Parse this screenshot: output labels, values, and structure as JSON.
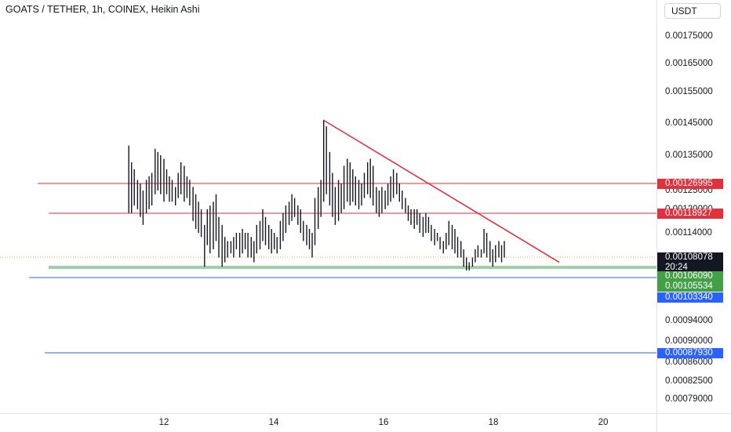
{
  "header": {
    "title": "GOATS / TETHER, 1h, COINEX, Heikin Ashi"
  },
  "price_axis": {
    "currency": "USDT",
    "ticks": [
      "0.00175000",
      "0.00165000",
      "0.00155000",
      "0.00145000",
      "0.00135000",
      "0.00125000",
      "0.00120000",
      "0.00114000",
      "0.00098000",
      "0.00094000",
      "0.00090000",
      "0.00086000",
      "0.00082500",
      "0.00079000"
    ]
  },
  "time_axis": {
    "labels": [
      "12",
      "14",
      "16",
      "18",
      "20"
    ]
  },
  "badges": [
    {
      "name": "badge-resistance-upper",
      "text": "0.00126995",
      "color": "#e0323d"
    },
    {
      "name": "badge-resistance-lower",
      "text": "0.00118927",
      "color": "#e0323d"
    },
    {
      "name": "badge-last-price",
      "text": "0.00108078",
      "color": "#131722"
    },
    {
      "name": "badge-countdown",
      "text": "20:24",
      "color": "#131722"
    },
    {
      "name": "badge-support-upper",
      "text": "0.00106090",
      "color": "#43a047"
    },
    {
      "name": "badge-support-lower",
      "text": "0.00105534",
      "color": "#43a047"
    },
    {
      "name": "badge-blue-upper",
      "text": "0.00103340",
      "color": "#2962ff"
    },
    {
      "name": "badge-blue-lower",
      "text": "0.00087930",
      "color": "#2962ff"
    }
  ],
  "chart_data": {
    "type": "bar",
    "symbol": "GOATS / TETHER",
    "interval": "1h",
    "exchange": "COINEX",
    "style": "Heikin Ashi",
    "currency": "USDT",
    "ylim": [
      0.00077,
      0.0018
    ],
    "x_ticks": [
      "12",
      "14",
      "16",
      "18",
      "20"
    ],
    "horizontal_lines": [
      {
        "name": "resistance-upper",
        "price": 0.00126995,
        "color": "#e0323d"
      },
      {
        "name": "resistance-lower",
        "price": 0.00118927,
        "color": "#e0323d"
      },
      {
        "name": "last-price",
        "price": 0.00108078,
        "color": "#f5a623",
        "style": "dotted"
      },
      {
        "name": "support-upper",
        "price": 0.0010609,
        "color": "#43a047"
      },
      {
        "name": "support-lower",
        "price": 0.00105534,
        "color": "#43a047"
      },
      {
        "name": "blue-upper",
        "price": 0.0010334,
        "color": "#2962ff"
      },
      {
        "name": "blue-lower",
        "price": 0.0008793,
        "color": "#2962ff"
      }
    ],
    "trendline": {
      "start": [
        14.9,
        0.00146
      ],
      "end": [
        19.2,
        0.00107
      ],
      "color": "#e0323d"
    },
    "candles_hl": [
      [
        11.36,
        0.00119,
        0.00138
      ],
      [
        11.41,
        0.00119,
        0.00133
      ],
      [
        11.46,
        0.00121,
        0.00131
      ],
      [
        11.52,
        0.0012,
        0.00128
      ],
      [
        11.57,
        0.00118,
        0.00127
      ],
      [
        11.62,
        0.00116,
        0.00125
      ],
      [
        11.68,
        0.00119,
        0.00128
      ],
      [
        11.73,
        0.0012,
        0.00129
      ],
      [
        11.78,
        0.00121,
        0.0013
      ],
      [
        11.84,
        0.00124,
        0.00137
      ],
      [
        11.89,
        0.00125,
        0.00136
      ],
      [
        11.94,
        0.00124,
        0.00135
      ],
      [
        12.0,
        0.00122,
        0.00134
      ],
      [
        12.05,
        0.00124,
        0.00131
      ],
      [
        12.1,
        0.00122,
        0.00129
      ],
      [
        12.15,
        0.00122,
        0.00128
      ],
      [
        12.21,
        0.00121,
        0.00126
      ],
      [
        12.26,
        0.00123,
        0.0013
      ],
      [
        12.31,
        0.00124,
        0.00133
      ],
      [
        12.37,
        0.00122,
        0.00132
      ],
      [
        12.42,
        0.00123,
        0.00129
      ],
      [
        12.47,
        0.00121,
        0.00128
      ],
      [
        12.53,
        0.00117,
        0.00126
      ],
      [
        12.58,
        0.00115,
        0.00124
      ],
      [
        12.63,
        0.00114,
        0.00122
      ],
      [
        12.68,
        0.00113,
        0.0012
      ],
      [
        12.74,
        0.00106,
        0.00116
      ],
      [
        12.79,
        0.00111,
        0.0012
      ],
      [
        12.84,
        0.00109,
        0.00121
      ],
      [
        12.9,
        0.0011,
        0.00122
      ],
      [
        12.95,
        0.00112,
        0.00124
      ],
      [
        13.0,
        0.00108,
        0.00118
      ],
      [
        13.06,
        0.00106,
        0.00116
      ],
      [
        13.11,
        0.00107,
        0.00113
      ],
      [
        13.16,
        0.00108,
        0.00112
      ],
      [
        13.22,
        0.00109,
        0.00112
      ],
      [
        13.27,
        0.00108,
        0.00113
      ],
      [
        13.32,
        0.0011,
        0.00114
      ],
      [
        13.38,
        0.00108,
        0.00114
      ],
      [
        13.43,
        0.00109,
        0.00115
      ],
      [
        13.48,
        0.0011,
        0.00114
      ],
      [
        13.53,
        0.00108,
        0.00114
      ],
      [
        13.59,
        0.00108,
        0.00113
      ],
      [
        13.64,
        0.00107,
        0.00112
      ],
      [
        13.69,
        0.00109,
        0.00116
      ],
      [
        13.75,
        0.0011,
        0.00117
      ],
      [
        13.8,
        0.00112,
        0.0012
      ],
      [
        13.85,
        0.00111,
        0.00118
      ],
      [
        13.91,
        0.0011,
        0.00116
      ],
      [
        13.96,
        0.00109,
        0.00115
      ],
      [
        14.01,
        0.0011,
        0.00114
      ],
      [
        14.06,
        0.00109,
        0.00113
      ],
      [
        14.12,
        0.0011,
        0.00117
      ],
      [
        14.17,
        0.00112,
        0.00119
      ],
      [
        14.22,
        0.00114,
        0.00121
      ],
      [
        14.28,
        0.00116,
        0.00122
      ],
      [
        14.33,
        0.00117,
        0.00124
      ],
      [
        14.38,
        0.00118,
        0.00123
      ],
      [
        14.44,
        0.00116,
        0.00121
      ],
      [
        14.49,
        0.00114,
        0.0012
      ],
      [
        14.54,
        0.00112,
        0.00117
      ],
      [
        14.6,
        0.00111,
        0.00116
      ],
      [
        14.65,
        0.0011,
        0.00115
      ],
      [
        14.7,
        0.00108,
        0.00114
      ],
      [
        14.75,
        0.00111,
        0.00123
      ],
      [
        14.81,
        0.00115,
        0.00126
      ],
      [
        14.86,
        0.00118,
        0.00128
      ],
      [
        14.91,
        0.00122,
        0.00146
      ],
      [
        14.96,
        0.00124,
        0.00144
      ],
      [
        15.02,
        0.00121,
        0.00136
      ],
      [
        15.07,
        0.00118,
        0.0013
      ],
      [
        15.12,
        0.00116,
        0.00126
      ],
      [
        15.18,
        0.00117,
        0.00128
      ],
      [
        15.23,
        0.00119,
        0.00127
      ],
      [
        15.28,
        0.0012,
        0.00132
      ],
      [
        15.34,
        0.00122,
        0.00134
      ],
      [
        15.39,
        0.00121,
        0.00133
      ],
      [
        15.44,
        0.00122,
        0.00131
      ],
      [
        15.49,
        0.00121,
        0.00129
      ],
      [
        15.55,
        0.0012,
        0.00128
      ],
      [
        15.6,
        0.00121,
        0.00127
      ],
      [
        15.65,
        0.00123,
        0.0013
      ],
      [
        15.71,
        0.00124,
        0.00133
      ],
      [
        15.76,
        0.00123,
        0.00134
      ],
      [
        15.81,
        0.00121,
        0.00132
      ],
      [
        15.87,
        0.00119,
        0.00126
      ],
      [
        15.92,
        0.00118,
        0.00125
      ],
      [
        15.97,
        0.00119,
        0.00126
      ],
      [
        16.03,
        0.0012,
        0.00125
      ],
      [
        16.08,
        0.00121,
        0.00127
      ],
      [
        16.13,
        0.00122,
        0.00129
      ],
      [
        16.18,
        0.00123,
        0.00131
      ],
      [
        16.24,
        0.00124,
        0.0013
      ],
      [
        16.29,
        0.00122,
        0.00127
      ],
      [
        16.34,
        0.0012,
        0.00125
      ],
      [
        16.4,
        0.00119,
        0.00123
      ],
      [
        16.45,
        0.00117,
        0.00121
      ],
      [
        16.5,
        0.00116,
        0.0012
      ],
      [
        16.56,
        0.00115,
        0.0012
      ],
      [
        16.61,
        0.00116,
        0.0012
      ],
      [
        16.66,
        0.00114,
        0.00119
      ],
      [
        16.72,
        0.00113,
        0.00118
      ],
      [
        16.77,
        0.00114,
        0.00119
      ],
      [
        16.82,
        0.00114,
        0.00118
      ],
      [
        16.87,
        0.00112,
        0.00116
      ],
      [
        16.93,
        0.00111,
        0.00115
      ],
      [
        16.98,
        0.00112,
        0.00114
      ],
      [
        17.03,
        0.0011,
        0.00113
      ],
      [
        17.09,
        0.00109,
        0.00112
      ],
      [
        17.14,
        0.0011,
        0.00114
      ],
      [
        17.19,
        0.00111,
        0.00117
      ],
      [
        17.25,
        0.0011,
        0.00116
      ],
      [
        17.3,
        0.00109,
        0.00115
      ],
      [
        17.35,
        0.00108,
        0.00113
      ],
      [
        17.41,
        0.00108,
        0.00112
      ],
      [
        17.46,
        0.00106,
        0.0011
      ],
      [
        17.51,
        0.00105,
        0.00108
      ],
      [
        17.56,
        0.00105,
        0.00107
      ],
      [
        17.62,
        0.00106,
        0.00108
      ],
      [
        17.67,
        0.00107,
        0.0011
      ],
      [
        17.72,
        0.00108,
        0.00111
      ],
      [
        17.78,
        0.00108,
        0.0011
      ],
      [
        17.83,
        0.00109,
        0.00115
      ],
      [
        17.88,
        0.00108,
        0.00114
      ],
      [
        17.94,
        0.00107,
        0.00112
      ],
      [
        17.99,
        0.00106,
        0.0011
      ],
      [
        18.04,
        0.00107,
        0.00111
      ],
      [
        18.1,
        0.00108,
        0.00112
      ],
      [
        18.15,
        0.00107,
        0.00111
      ],
      [
        18.2,
        0.00108,
        0.00112
      ]
    ]
  }
}
